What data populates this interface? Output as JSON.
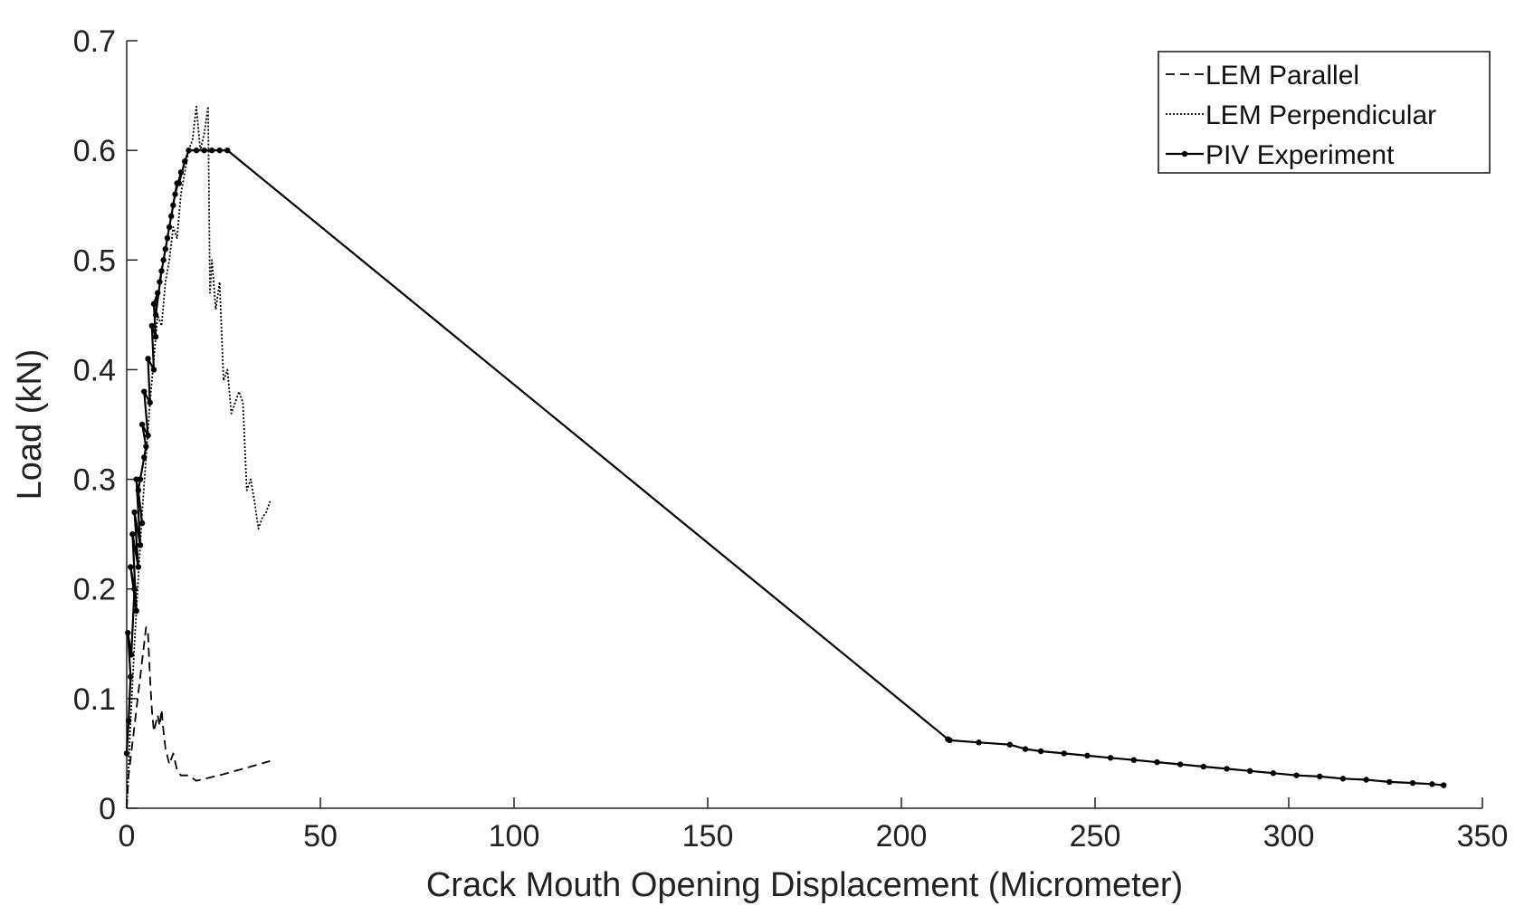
{
  "chart_data": {
    "type": "line",
    "xlabel": "Crack Mouth Opening Displacement (Micrometer)",
    "ylabel": "Load (kN)",
    "xlim": [
      0,
      350
    ],
    "ylim": [
      0,
      0.7
    ],
    "xticks": [
      0,
      50,
      100,
      150,
      200,
      250,
      300,
      350
    ],
    "yticks": [
      0,
      0.1,
      0.2,
      0.3,
      0.4,
      0.5,
      0.6,
      0.7
    ],
    "grid": false,
    "legend_position": "top-right",
    "series": [
      {
        "name": "LEM Parallel",
        "style": "dashed",
        "color": "#000000",
        "x": [
          0,
          0.5,
          1,
          1.5,
          2,
          2.5,
          3,
          3.5,
          4,
          4.5,
          5,
          5.5,
          6,
          6.5,
          7,
          8,
          8.5,
          9,
          9.5,
          10,
          11,
          12,
          13,
          14,
          16,
          18,
          25,
          32,
          37
        ],
        "y": [
          0,
          0.03,
          0.045,
          0.06,
          0.075,
          0.09,
          0.105,
          0.12,
          0.135,
          0.15,
          0.165,
          0.16,
          0.12,
          0.09,
          0.07,
          0.085,
          0.075,
          0.09,
          0.07,
          0.055,
          0.04,
          0.05,
          0.035,
          0.03,
          0.03,
          0.025,
          0.031,
          0.038,
          0.043
        ]
      },
      {
        "name": "LEM Perpendicular",
        "style": "dotted",
        "color": "#000000",
        "x": [
          0,
          1,
          2,
          3,
          4,
          5,
          6,
          7,
          8,
          9,
          10,
          11,
          12,
          13,
          14,
          15,
          16,
          17,
          18,
          19,
          20,
          21,
          21.5,
          22,
          23,
          24,
          25,
          26,
          27,
          28,
          29,
          30,
          31,
          32,
          33,
          34,
          35,
          36,
          37
        ],
        "y": [
          0,
          0.08,
          0.15,
          0.21,
          0.27,
          0.32,
          0.37,
          0.41,
          0.45,
          0.44,
          0.48,
          0.5,
          0.53,
          0.52,
          0.56,
          0.58,
          0.6,
          0.61,
          0.64,
          0.6,
          0.615,
          0.64,
          0.47,
          0.5,
          0.455,
          0.48,
          0.39,
          0.4,
          0.36,
          0.37,
          0.38,
          0.37,
          0.29,
          0.3,
          0.28,
          0.255,
          0.265,
          0.27,
          0.28
        ]
      },
      {
        "name": "PIV Experiment",
        "style": "solid-markers",
        "color": "#000000",
        "x": [
          0,
          0.5,
          1,
          0.3,
          1.2,
          2,
          1,
          2.5,
          1.5,
          3,
          2,
          3.5,
          2.5,
          4,
          3,
          4.5,
          3.5,
          5,
          4,
          5.5,
          4.5,
          6,
          5.5,
          7,
          6.5,
          7.5,
          7,
          8,
          7.5,
          9,
          8.5,
          10,
          9.5,
          11,
          10.5,
          12,
          11.5,
          13,
          12.5,
          14,
          13.5,
          15,
          16,
          18,
          20,
          22,
          24,
          26,
          212,
          212.5,
          220,
          228,
          232,
          236,
          242,
          248,
          254,
          260,
          266,
          272,
          278,
          284,
          290,
          296,
          302,
          308,
          314,
          320,
          326,
          332,
          337,
          340
        ],
        "y": [
          0.05,
          0.08,
          0.12,
          0.16,
          0.14,
          0.2,
          0.22,
          0.18,
          0.25,
          0.22,
          0.27,
          0.24,
          0.3,
          0.26,
          0.29,
          0.32,
          0.3,
          0.33,
          0.35,
          0.34,
          0.38,
          0.37,
          0.41,
          0.4,
          0.44,
          0.43,
          0.46,
          0.47,
          0.45,
          0.49,
          0.48,
          0.51,
          0.5,
          0.53,
          0.52,
          0.55,
          0.54,
          0.57,
          0.56,
          0.58,
          0.57,
          0.59,
          0.6,
          0.6,
          0.6,
          0.6,
          0.6,
          0.6,
          0.063,
          0.062,
          0.06,
          0.058,
          0.054,
          0.052,
          0.05,
          0.048,
          0.046,
          0.044,
          0.042,
          0.04,
          0.038,
          0.036,
          0.034,
          0.032,
          0.03,
          0.029,
          0.027,
          0.026,
          0.024,
          0.023,
          0.022,
          0.021
        ]
      }
    ]
  }
}
